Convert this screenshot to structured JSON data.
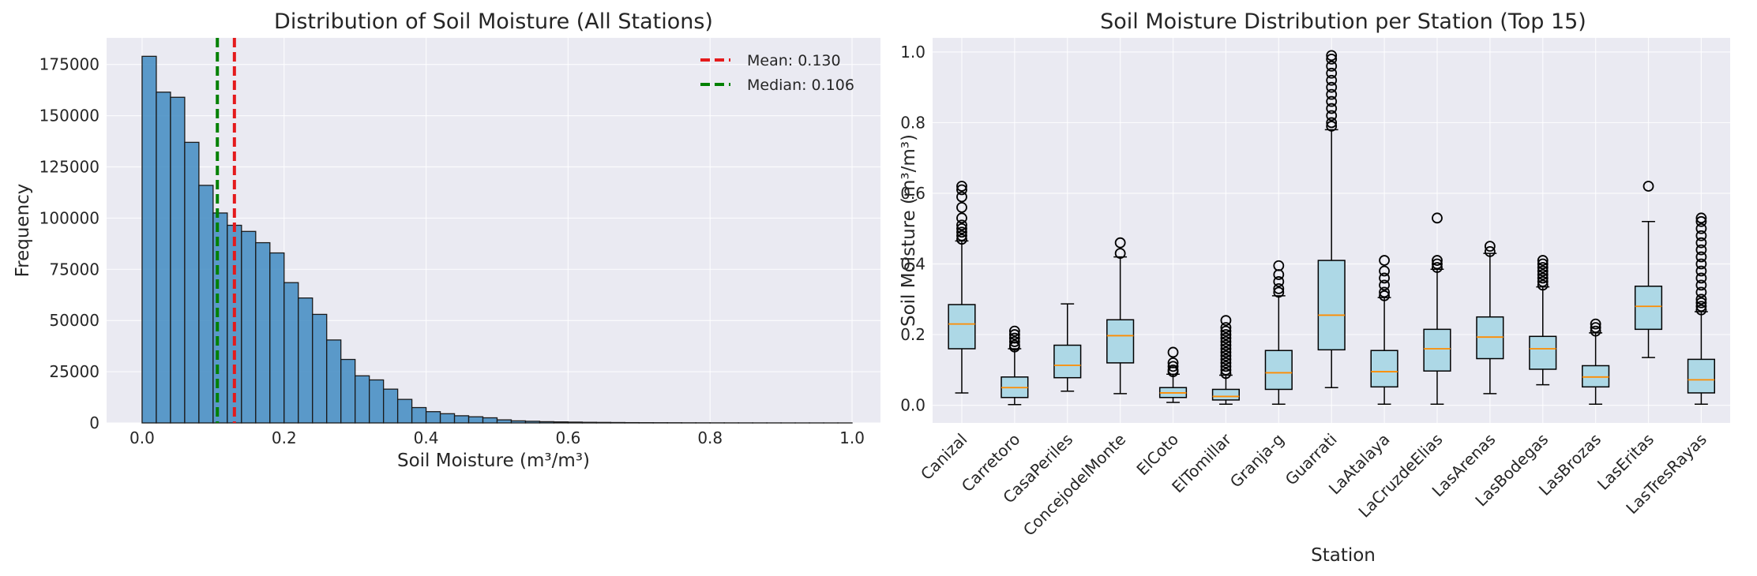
{
  "chart_data": [
    {
      "type": "bar",
      "title": "Distribution of Soil Moisture (All Stations)",
      "xlabel": "Soil Moisture (m³/m³)",
      "ylabel": "Frequency",
      "xlim": [
        -0.05,
        1.04
      ],
      "ylim": [
        0,
        188000
      ],
      "bin_width": 0.02,
      "bin_start": 0.0,
      "xticks": [
        0.0,
        0.2,
        0.4,
        0.6,
        0.8,
        1.0
      ],
      "xtick_labels": [
        "0.0",
        "0.2",
        "0.4",
        "0.6",
        "0.8",
        "1.0"
      ],
      "yticks": [
        0,
        25000,
        50000,
        75000,
        100000,
        125000,
        150000,
        175000
      ],
      "ytick_labels": [
        "0",
        "25000",
        "50000",
        "75000",
        "100000",
        "125000",
        "150000",
        "175000"
      ],
      "values": [
        179000,
        161500,
        159000,
        137000,
        116000,
        102500,
        96500,
        93500,
        88000,
        83000,
        68500,
        61000,
        53000,
        40500,
        31000,
        23000,
        21000,
        16500,
        11500,
        7500,
        5500,
        4500,
        3500,
        3000,
        2500,
        1500,
        1000,
        800,
        600,
        500,
        400,
        300,
        250,
        200,
        150,
        120,
        100,
        80,
        60,
        50,
        40,
        30,
        25,
        20,
        15,
        10,
        8,
        5,
        3,
        2
      ],
      "bar_color": "#4a90c4",
      "reference_lines": [
        {
          "label": "Mean: 0.130",
          "x": 0.13,
          "color": "#e41a1c"
        },
        {
          "label": "Median: 0.106",
          "x": 0.106,
          "color": "#008000"
        }
      ],
      "legend_position": "top-right",
      "grid": true
    },
    {
      "type": "box",
      "title": "Soil Moisture Distribution per Station (Top 15)",
      "xlabel": "Station",
      "ylabel": "Soil Moisture (m³/m³)",
      "ylim": [
        -0.05,
        1.04
      ],
      "yticks": [
        0.0,
        0.2,
        0.4,
        0.6,
        0.8,
        1.0
      ],
      "ytick_labels": [
        "0.0",
        "0.2",
        "0.4",
        "0.6",
        "0.8",
        "1.0"
      ],
      "box_color": "#add8e6",
      "median_color": "#ff8c00",
      "grid": true,
      "categories": [
        "Canizal",
        "Carretoro",
        "CasaPeriles",
        "ConcejodelMonte",
        "ElCoto",
        "ElTomillar",
        "Granja-g",
        "Guarrati",
        "LaAtalaya",
        "LaCruzdeElias",
        "LasArenas",
        "LasBodegas",
        "LasBrozas",
        "LasEritas",
        "LasTresRayas"
      ],
      "stats": [
        {
          "whislo": 0.035,
          "q1": 0.16,
          "med": 0.23,
          "q3": 0.285,
          "whishi": 0.465,
          "fliers": [
            0.47,
            0.48,
            0.49,
            0.5,
            0.51,
            0.53,
            0.56,
            0.59,
            0.61,
            0.62
          ]
        },
        {
          "whislo": 0.002,
          "q1": 0.022,
          "med": 0.05,
          "q3": 0.08,
          "whishi": 0.16,
          "fliers": [
            0.165,
            0.17,
            0.18,
            0.19,
            0.2,
            0.21
          ]
        },
        {
          "whislo": 0.04,
          "q1": 0.078,
          "med": 0.113,
          "q3": 0.17,
          "whishi": 0.287,
          "fliers": []
        },
        {
          "whislo": 0.033,
          "q1": 0.12,
          "med": 0.197,
          "q3": 0.242,
          "whishi": 0.42,
          "fliers": [
            0.43,
            0.46
          ]
        },
        {
          "whislo": 0.008,
          "q1": 0.022,
          "med": 0.035,
          "q3": 0.05,
          "whishi": 0.088,
          "fliers": [
            0.095,
            0.1,
            0.11,
            0.12,
            0.15
          ]
        },
        {
          "whislo": 0.003,
          "q1": 0.015,
          "med": 0.025,
          "q3": 0.045,
          "whishi": 0.085,
          "fliers": [
            0.09,
            0.1,
            0.11,
            0.12,
            0.13,
            0.14,
            0.15,
            0.16,
            0.17,
            0.18,
            0.19,
            0.2,
            0.21,
            0.22,
            0.24
          ]
        },
        {
          "whislo": 0.003,
          "q1": 0.045,
          "med": 0.092,
          "q3": 0.155,
          "whishi": 0.31,
          "fliers": [
            0.32,
            0.33,
            0.35,
            0.37,
            0.395
          ]
        },
        {
          "whislo": 0.05,
          "q1": 0.157,
          "med": 0.255,
          "q3": 0.41,
          "whishi": 0.78,
          "fliers": [
            0.79,
            0.8,
            0.82,
            0.84,
            0.86,
            0.88,
            0.9,
            0.92,
            0.94,
            0.96,
            0.98,
            0.99
          ]
        },
        {
          "whislo": 0.003,
          "q1": 0.052,
          "med": 0.095,
          "q3": 0.155,
          "whishi": 0.305,
          "fliers": [
            0.31,
            0.32,
            0.34,
            0.36,
            0.38,
            0.41
          ]
        },
        {
          "whislo": 0.003,
          "q1": 0.097,
          "med": 0.16,
          "q3": 0.215,
          "whishi": 0.385,
          "fliers": [
            0.39,
            0.4,
            0.41,
            0.53
          ]
        },
        {
          "whislo": 0.033,
          "q1": 0.132,
          "med": 0.193,
          "q3": 0.25,
          "whishi": 0.43,
          "fliers": [
            0.435,
            0.45
          ]
        },
        {
          "whislo": 0.058,
          "q1": 0.102,
          "med": 0.16,
          "q3": 0.195,
          "whishi": 0.335,
          "fliers": [
            0.34,
            0.35,
            0.36,
            0.37,
            0.38,
            0.39,
            0.4,
            0.41
          ]
        },
        {
          "whislo": 0.003,
          "q1": 0.052,
          "med": 0.08,
          "q3": 0.112,
          "whishi": 0.205,
          "fliers": [
            0.21,
            0.22,
            0.23
          ]
        },
        {
          "whislo": 0.135,
          "q1": 0.215,
          "med": 0.28,
          "q3": 0.337,
          "whishi": 0.52,
          "fliers": [
            0.62
          ]
        },
        {
          "whislo": 0.003,
          "q1": 0.035,
          "med": 0.072,
          "q3": 0.13,
          "whishi": 0.265,
          "fliers": [
            0.27,
            0.28,
            0.29,
            0.3,
            0.32,
            0.34,
            0.36,
            0.38,
            0.4,
            0.42,
            0.44,
            0.46,
            0.48,
            0.5,
            0.52,
            0.53
          ]
        }
      ]
    }
  ]
}
